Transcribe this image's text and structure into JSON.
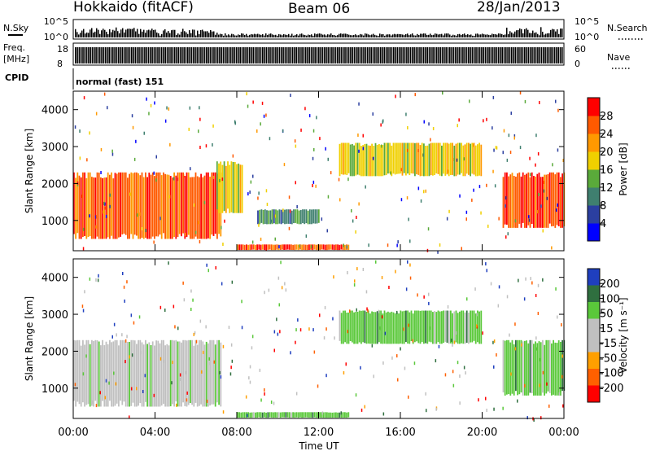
{
  "header": {
    "station": "Hokkaido (fitACF)",
    "beam": "Beam 06",
    "date": "28/Jan/2013"
  },
  "top_panels": {
    "nsky_label": "N.Sky",
    "nsky_ticks": [
      "10^5",
      "10^0"
    ],
    "nsearch_label": "N.Search",
    "nsearch_ticks": [
      "10^5",
      "10^0"
    ],
    "freq_label_1": "Freq.",
    "freq_label_2": "[MHz]",
    "freq_ticks": [
      "18",
      "8"
    ],
    "nave_label": "Nave",
    "nave_ticks": [
      "60",
      "0"
    ],
    "cpid_label": "CPID",
    "cpid_text": "normal (fast) 151"
  },
  "colors": {
    "power_scale": [
      "#0000ff",
      "#2b3fa0",
      "#3f7f6f",
      "#5aaa3a",
      "#f0d000",
      "#ff9900",
      "#ff5a00",
      "#ff0000"
    ],
    "velocity_scale": [
      "#1f3fbf",
      "#2f6f3f",
      "#5ac83a",
      "#c0c0c0",
      "#c0c0c0",
      "#ff9f00",
      "#ff6000",
      "#ff0000"
    ]
  },
  "chart_data": [
    {
      "type": "heatmap",
      "name": "power",
      "ylabel": "Slant Range [km]",
      "xlabel": "Time UT",
      "x_ticks": [
        "00:00",
        "04:00",
        "08:00",
        "12:00",
        "16:00",
        "20:00",
        "00:00"
      ],
      "y_ticks": [
        "1000",
        "2000",
        "3000",
        "4000"
      ],
      "ylim": [
        180,
        4500
      ],
      "colorbar_label": "Power [dB]",
      "colorbar_ticks": [
        "4",
        "8",
        "12",
        "16",
        "20",
        "24",
        "28"
      ],
      "regions": [
        {
          "t0": 0.0,
          "t1": 7.2,
          "r0": 500,
          "r1": 2300,
          "level": 28
        },
        {
          "t0": 7.0,
          "t1": 8.3,
          "r0": 1200,
          "r1": 2600,
          "level": 18
        },
        {
          "t0": 8.0,
          "t1": 13.5,
          "r0": 200,
          "r1": 350,
          "level": 28
        },
        {
          "t0": 9.0,
          "t1": 12.0,
          "r0": 900,
          "r1": 1300,
          "level": 10
        },
        {
          "t0": 13.0,
          "t1": 20.0,
          "r0": 2200,
          "r1": 3100,
          "level": 18
        },
        {
          "t0": 21.0,
          "t1": 24.0,
          "r0": 800,
          "r1": 2300,
          "level": 28
        }
      ]
    },
    {
      "type": "heatmap",
      "name": "velocity",
      "ylabel": "Slant Range [km]",
      "xlabel": "Time UT",
      "x_ticks": [
        "00:00",
        "04:00",
        "08:00",
        "12:00",
        "16:00",
        "20:00",
        "00:00"
      ],
      "y_ticks": [
        "1000",
        "2000",
        "3000",
        "4000"
      ],
      "ylim": [
        180,
        4500
      ],
      "colorbar_label": "Velocity [m s⁻¹]",
      "colorbar_ticks": [
        "200",
        "100",
        "50",
        "15",
        "-15",
        "-50",
        "-100",
        "-200"
      ],
      "regions": [
        {
          "t0": 0.0,
          "t1": 7.2,
          "r0": 500,
          "r1": 2300,
          "level": 0
        },
        {
          "t0": 8.0,
          "t1": 13.5,
          "r0": 200,
          "r1": 350,
          "level": 30
        },
        {
          "t0": 13.0,
          "t1": 20.0,
          "r0": 2200,
          "r1": 3100,
          "level": 20
        },
        {
          "t0": 21.0,
          "t1": 24.0,
          "r0": 800,
          "r1": 2300,
          "level": 20
        }
      ]
    }
  ]
}
